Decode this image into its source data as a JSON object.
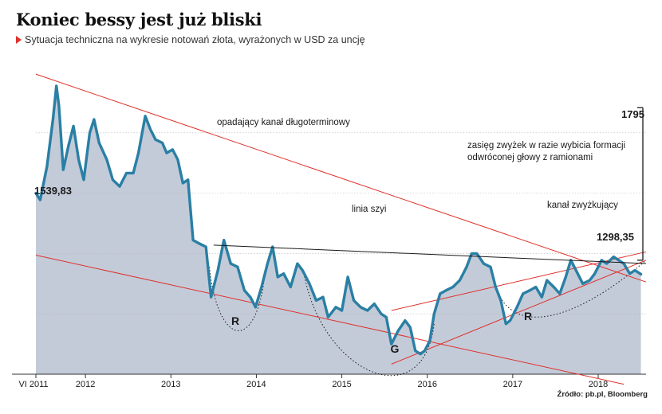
{
  "title": "Koniec bessy jest już bliski",
  "subtitle": "Sytuacja techniczna na wykresie notowań złota, wyrażonych w USD za uncję",
  "source": "Źródło: pb.pl, Bloomberg",
  "colors": {
    "area": "#c3cbd9",
    "line": "#2a7fa4",
    "trend": "#e0312b",
    "neck": "#1a1a1a",
    "grid": "#b8b8b8"
  },
  "chart_data": {
    "type": "area",
    "x_axis": {
      "min": 2011.42,
      "max": 2018.56,
      "ticks": [
        {
          "value": 2011.42,
          "label": "VI 2011"
        },
        {
          "value": 2012.0,
          "label": "2012"
        },
        {
          "value": 2013.0,
          "label": "2013"
        },
        {
          "value": 2014.0,
          "label": "2014"
        },
        {
          "value": 2015.0,
          "label": "2015"
        },
        {
          "value": 2016.0,
          "label": "2016"
        },
        {
          "value": 2017.0,
          "label": "2017"
        },
        {
          "value": 2018.0,
          "label": "2018"
        }
      ]
    },
    "y_axis": {
      "min": 1000,
      "max": 1950,
      "gridlines": [
        1180,
        1360,
        1540,
        1720
      ],
      "grid": true
    },
    "series": [
      {
        "points": [
          [
            2011.42,
            1539.83
          ],
          [
            2011.47,
            1520
          ],
          [
            2011.55,
            1620
          ],
          [
            2011.62,
            1760
          ],
          [
            2011.66,
            1860
          ],
          [
            2011.69,
            1800
          ],
          [
            2011.74,
            1610
          ],
          [
            2011.8,
            1680
          ],
          [
            2011.86,
            1740
          ],
          [
            2011.92,
            1640
          ],
          [
            2011.98,
            1580
          ],
          [
            2012.05,
            1720
          ],
          [
            2012.1,
            1760
          ],
          [
            2012.16,
            1690
          ],
          [
            2012.25,
            1640
          ],
          [
            2012.32,
            1580
          ],
          [
            2012.4,
            1560
          ],
          [
            2012.48,
            1600
          ],
          [
            2012.56,
            1600
          ],
          [
            2012.62,
            1660
          ],
          [
            2012.7,
            1770
          ],
          [
            2012.76,
            1730
          ],
          [
            2012.82,
            1700
          ],
          [
            2012.9,
            1690
          ],
          [
            2012.95,
            1660
          ],
          [
            2013.02,
            1670
          ],
          [
            2013.08,
            1640
          ],
          [
            2013.14,
            1570
          ],
          [
            2013.2,
            1580
          ],
          [
            2013.26,
            1400
          ],
          [
            2013.33,
            1390
          ],
          [
            2013.41,
            1380
          ],
          [
            2013.47,
            1230
          ],
          [
            2013.55,
            1310
          ],
          [
            2013.62,
            1400
          ],
          [
            2013.7,
            1330
          ],
          [
            2013.78,
            1320
          ],
          [
            2013.86,
            1250
          ],
          [
            2013.93,
            1230
          ],
          [
            2013.99,
            1200
          ],
          [
            2014.06,
            1260
          ],
          [
            2014.13,
            1330
          ],
          [
            2014.19,
            1380
          ],
          [
            2014.25,
            1290
          ],
          [
            2014.32,
            1300
          ],
          [
            2014.4,
            1260
          ],
          [
            2014.48,
            1330
          ],
          [
            2014.54,
            1310
          ],
          [
            2014.62,
            1270
          ],
          [
            2014.7,
            1220
          ],
          [
            2014.78,
            1230
          ],
          [
            2014.84,
            1170
          ],
          [
            2014.93,
            1200
          ],
          [
            2015.0,
            1190
          ],
          [
            2015.07,
            1290
          ],
          [
            2015.14,
            1220
          ],
          [
            2015.22,
            1200
          ],
          [
            2015.3,
            1190
          ],
          [
            2015.38,
            1210
          ],
          [
            2015.46,
            1180
          ],
          [
            2015.52,
            1170
          ],
          [
            2015.58,
            1090
          ],
          [
            2015.66,
            1130
          ],
          [
            2015.74,
            1160
          ],
          [
            2015.8,
            1140
          ],
          [
            2015.86,
            1070
          ],
          [
            2015.92,
            1060
          ],
          [
            2015.97,
            1070
          ],
          [
            2016.03,
            1100
          ],
          [
            2016.08,
            1180
          ],
          [
            2016.15,
            1240
          ],
          [
            2016.22,
            1250
          ],
          [
            2016.3,
            1260
          ],
          [
            2016.38,
            1280
          ],
          [
            2016.46,
            1320
          ],
          [
            2016.52,
            1360
          ],
          [
            2016.58,
            1360
          ],
          [
            2016.66,
            1330
          ],
          [
            2016.74,
            1320
          ],
          [
            2016.8,
            1260
          ],
          [
            2016.86,
            1220
          ],
          [
            2016.92,
            1150
          ],
          [
            2016.97,
            1160
          ],
          [
            2017.05,
            1200
          ],
          [
            2017.12,
            1240
          ],
          [
            2017.2,
            1250
          ],
          [
            2017.27,
            1260
          ],
          [
            2017.34,
            1230
          ],
          [
            2017.4,
            1280
          ],
          [
            2017.48,
            1260
          ],
          [
            2017.55,
            1240
          ],
          [
            2017.62,
            1290
          ],
          [
            2017.68,
            1340
          ],
          [
            2017.76,
            1300
          ],
          [
            2017.82,
            1270
          ],
          [
            2017.9,
            1280
          ],
          [
            2017.96,
            1300
          ],
          [
            2018.04,
            1340
          ],
          [
            2018.1,
            1330
          ],
          [
            2018.18,
            1350
          ],
          [
            2018.24,
            1340
          ],
          [
            2018.3,
            1330
          ],
          [
            2018.37,
            1300
          ],
          [
            2018.43,
            1310
          ],
          [
            2018.5,
            1298.35
          ]
        ]
      }
    ],
    "labels": [
      {
        "text": "1539,83",
        "x": 2011.42,
        "y": 1539.83
      },
      {
        "text": "1298,35",
        "x": 2018.5,
        "y": 1298.35
      },
      {
        "text": "1795",
        "x": 2018.42,
        "y": 1795
      }
    ],
    "annotations": {
      "downtrend_label": "opadający kanał długoterminowy",
      "neckline_label": "linia szyi",
      "uptrend_label": "kanał zwyżkujący",
      "target_label_line1": "zasięg zwyżek w razie wybicia formacji",
      "target_label_line2": "odwróconej głowy z ramionami",
      "left_shoulder": "R",
      "head": "G",
      "right_shoulder": "R"
    },
    "trendlines": {
      "downtrend_upper": [
        [
          2011.42,
          1895
        ],
        [
          2018.56,
          1275
        ]
      ],
      "downtrend_lower": [
        [
          2011.42,
          1355
        ],
        [
          2018.3,
          970
        ]
      ],
      "uptrend_upper": [
        [
          2015.58,
          1190
        ],
        [
          2018.56,
          1365
        ]
      ],
      "uptrend_lower": [
        [
          2015.58,
          1030
        ],
        [
          2018.56,
          1340
        ]
      ],
      "neckline": [
        [
          2013.5,
          1385
        ],
        [
          2018.56,
          1330
        ]
      ]
    }
  }
}
